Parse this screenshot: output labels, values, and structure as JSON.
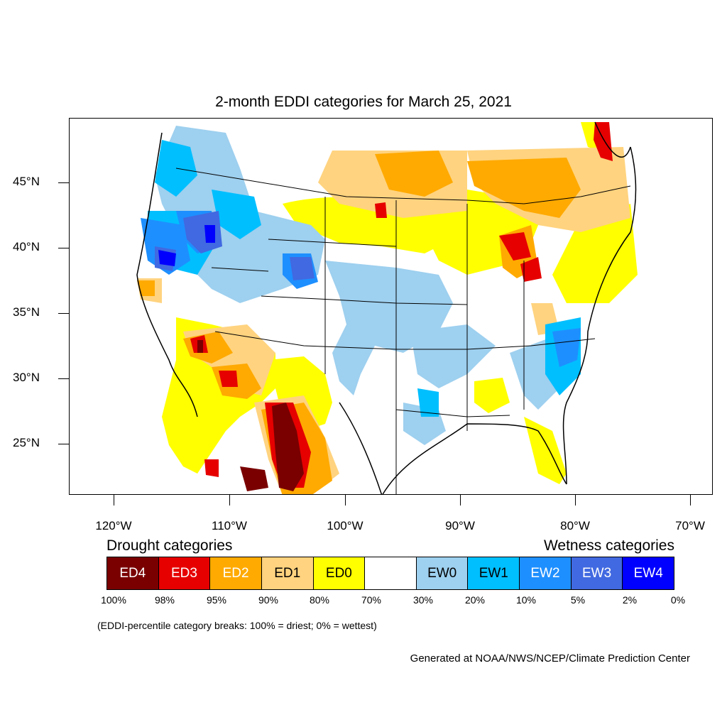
{
  "title": "2-month EDDI categories for March 25, 2021",
  "map": {
    "region": "Continental United States",
    "lon_range": [
      -124.0,
      -68.5
    ],
    "lat_range": [
      21.0,
      50.0
    ],
    "lat_labels": [
      "45°N",
      "40°N",
      "35°N",
      "30°N",
      "25°N"
    ],
    "lon_labels": [
      "120°W",
      "110°W",
      "100°W",
      "90°W",
      "80°W",
      "70°W"
    ],
    "colors": {
      "ED4": "#7a0000",
      "ED3": "#e60000",
      "ED2": "#ffaa00",
      "ED1": "#ffd37f",
      "ED0": "#ffff00",
      "EW0": "#9ed0ef",
      "EW1": "#00bfff",
      "EW2": "#1e8fff",
      "EW3": "#4169e1",
      "EW4": "#0000ff"
    }
  },
  "legend": {
    "drought_title": "Drought categories",
    "wetness_title": "Wetness categories",
    "categories": [
      {
        "label": "ED4",
        "color": "#7a0000",
        "text_color": "#ffffff"
      },
      {
        "label": "ED3",
        "color": "#e60000",
        "text_color": "#ffffff"
      },
      {
        "label": "ED2",
        "color": "#ffaa00",
        "text_color": "#ffffff"
      },
      {
        "label": "ED1",
        "color": "#ffd37f",
        "text_color": "#000000"
      },
      {
        "label": "ED0",
        "color": "#ffff00",
        "text_color": "#000000"
      },
      {
        "label": "",
        "color": "#ffffff",
        "text_color": "#000000"
      },
      {
        "label": "EW0",
        "color": "#9ed0ef",
        "text_color": "#000000"
      },
      {
        "label": "EW1",
        "color": "#00bfff",
        "text_color": "#000000"
      },
      {
        "label": "EW2",
        "color": "#1e8fff",
        "text_color": "#ffffff"
      },
      {
        "label": "EW3",
        "color": "#4169e1",
        "text_color": "#ffffff"
      },
      {
        "label": "EW4",
        "color": "#0000ff",
        "text_color": "#ffffff"
      }
    ],
    "breaks": [
      "100%",
      "98%",
      "95%",
      "90%",
      "80%",
      "70%",
      "30%",
      "20%",
      "10%",
      "5%",
      "2%",
      "0%"
    ],
    "note": "(EDDI-percentile category breaks: 100% = driest; 0% = wettest)"
  },
  "credit": "Generated at NOAA/NWS/NCEP/Climate Prediction Center"
}
